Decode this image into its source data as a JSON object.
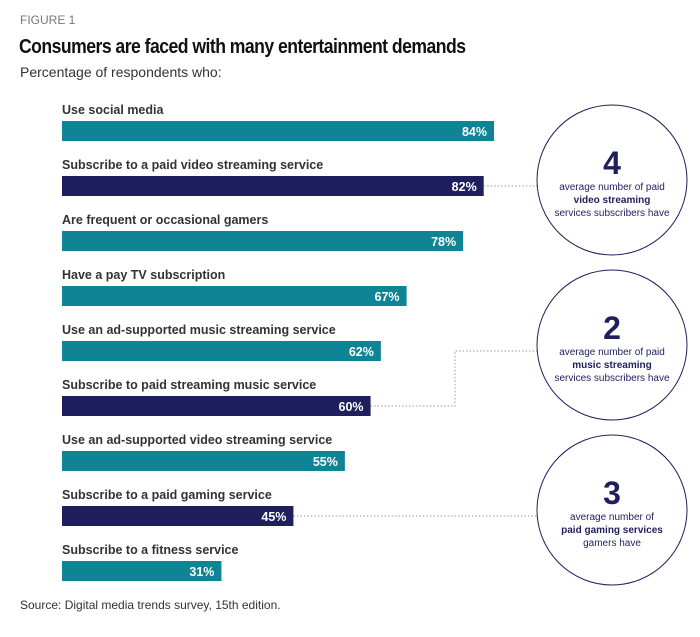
{
  "figure_label": "FIGURE 1",
  "chart_data": {
    "type": "bar",
    "orientation": "horizontal",
    "title": "Consumers are faced with many entertainment demands",
    "subtitle": "Percentage of respondents who:",
    "categories": [
      "Use social media",
      "Subscribe to a paid video streaming service",
      "Are frequent or occasional gamers",
      "Have a pay TV subscription",
      "Use an ad-supported music streaming service",
      "Subscribe to paid streaming music service",
      "Use an ad-supported video streaming service",
      "Subscribe to a paid gaming service",
      "Subscribe to a fitness service"
    ],
    "values": [
      84,
      82,
      78,
      67,
      62,
      60,
      55,
      45,
      31
    ],
    "value_labels": [
      "84%",
      "82%",
      "78%",
      "67%",
      "62%",
      "60%",
      "55%",
      "45%",
      "31%"
    ],
    "highlighted": [
      false,
      true,
      false,
      false,
      false,
      true,
      false,
      true,
      false
    ],
    "colors": {
      "default": "#0f8494",
      "highlight": "#1f1f5e"
    },
    "annotations": [
      {
        "target": 1,
        "number": "4",
        "lines": [
          "average number of paid",
          "video streaming",
          "services subscribers have"
        ]
      },
      {
        "target": 5,
        "number": "2",
        "lines": [
          "average number of paid",
          "music streaming",
          "services subscribers have"
        ]
      },
      {
        "target": 7,
        "number": "3",
        "lines": [
          "average number of",
          "paid gaming services",
          "gamers have"
        ]
      }
    ],
    "source": "Source: Digital media trends survey, 15th edition."
  }
}
